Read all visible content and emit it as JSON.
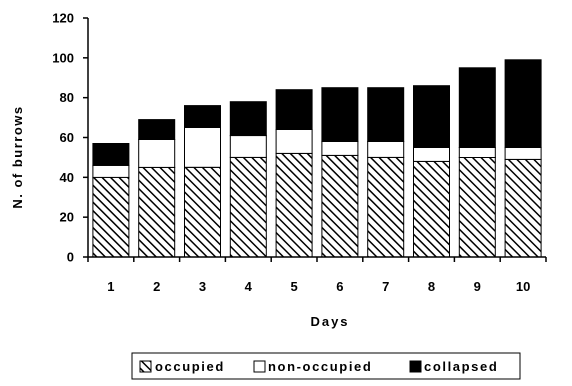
{
  "chart_data": {
    "type": "bar",
    "stacked": true,
    "categories": [
      "1",
      "2",
      "3",
      "4",
      "5",
      "6",
      "7",
      "8",
      "9",
      "10"
    ],
    "series": [
      {
        "name": "occupied",
        "values": [
          40,
          45,
          45,
          50,
          52,
          51,
          50,
          48,
          50,
          49
        ],
        "fill": "hatched"
      },
      {
        "name": "non-occupied",
        "values": [
          6,
          14,
          20,
          11,
          12,
          7,
          8,
          7,
          5,
          6
        ],
        "fill": "#ffffff"
      },
      {
        "name": "collapsed",
        "values": [
          11,
          10,
          11,
          17,
          20,
          27,
          27,
          31,
          40,
          44
        ],
        "fill": "#000000"
      }
    ],
    "title": "",
    "xlabel": "Days",
    "ylabel": "N. of burrows",
    "ylim": [
      0,
      120
    ],
    "yticks": [
      "0",
      "20",
      "40",
      "60",
      "80",
      "100",
      "120"
    ],
    "grid": false,
    "legend": "bottom"
  }
}
